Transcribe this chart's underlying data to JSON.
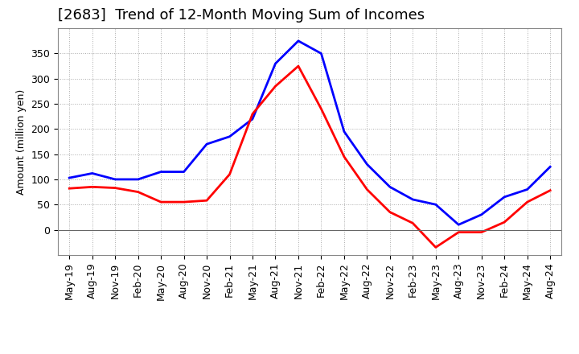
{
  "title": "[2683]  Trend of 12-Month Moving Sum of Incomes",
  "ylabel": "Amount (million yen)",
  "background_color": "#ffffff",
  "plot_bg_color": "#ffffff",
  "grid_color": "#aaaaaa",
  "x_labels": [
    "May-19",
    "Aug-19",
    "Nov-19",
    "Feb-20",
    "May-20",
    "Aug-20",
    "Nov-20",
    "Feb-21",
    "May-21",
    "Aug-21",
    "Nov-21",
    "Feb-22",
    "May-22",
    "Aug-22",
    "Nov-22",
    "Feb-23",
    "May-23",
    "Aug-23",
    "Nov-23",
    "Feb-24",
    "May-24",
    "Aug-24"
  ],
  "ordinary_income": [
    103,
    112,
    100,
    100,
    115,
    115,
    170,
    185,
    220,
    330,
    375,
    350,
    195,
    130,
    85,
    60,
    50,
    10,
    30,
    65,
    80,
    125
  ],
  "net_income": [
    82,
    85,
    83,
    75,
    55,
    55,
    58,
    110,
    230,
    285,
    325,
    240,
    145,
    80,
    35,
    13,
    -35,
    -5,
    -5,
    15,
    55,
    78
  ],
  "ordinary_color": "#0000ff",
  "net_color": "#ff0000",
  "ylim_min": -50,
  "ylim_max": 400,
  "yticks": [
    0,
    50,
    100,
    150,
    200,
    250,
    300,
    350
  ],
  "line_width": 2.0,
  "title_fontsize": 13,
  "tick_fontsize": 9
}
